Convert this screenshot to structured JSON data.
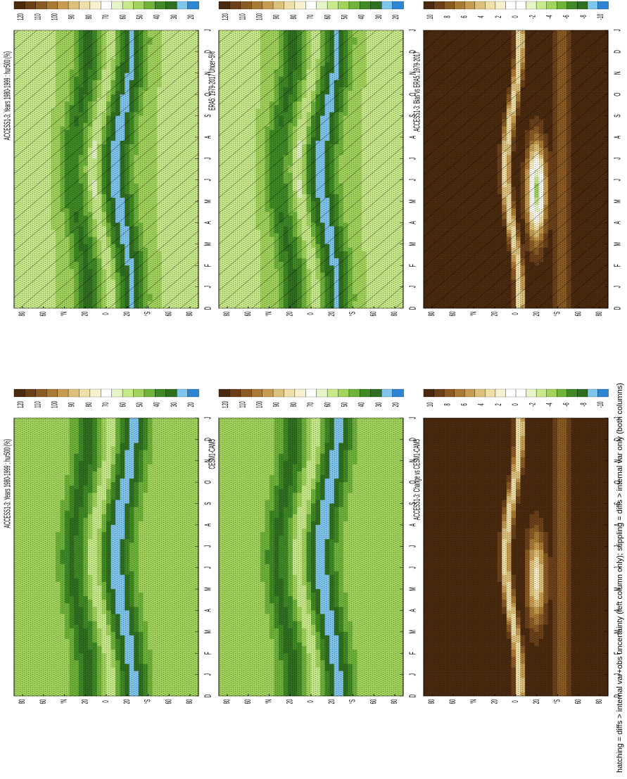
{
  "figure": {
    "footnote": "hatching = diffs > internal var+obs uncertainty (left column only); stippling = diffs > internal var only (both columns)",
    "month_labels": [
      "D",
      "J",
      "F",
      "M",
      "A",
      "M",
      "J",
      "J",
      "A",
      "S",
      "O",
      "N",
      "D",
      "J"
    ],
    "lat_labels": [
      "80",
      "60",
      "°N",
      "20",
      "0",
      "20",
      "°S",
      "60",
      "80"
    ]
  },
  "colors": {
    "climatology": [
      "#4a2a0e",
      "#6b4019",
      "#8a5a23",
      "#a97a33",
      "#c79c50",
      "#dcc17c",
      "#eee0a8",
      "#f7f1cf",
      "#ffffff",
      "#e6f5c8",
      "#c8ea8a",
      "#a2d45c",
      "#6fb33a",
      "#3f8a25",
      "#2f6f1f",
      "#7fc6ef",
      "#2c86d4"
    ],
    "difference": [
      "#4a2a0e",
      "#6b4019",
      "#8a5a23",
      "#a97a33",
      "#c79c50",
      "#dcc17c",
      "#eee0a8",
      "#f7f1cf",
      "#ffffff",
      "#ffffff",
      "#e6f5c8",
      "#c8ea8a",
      "#a2d45c",
      "#6fb33a",
      "#3f8a25",
      "#2f6f1f",
      "#7fc6ef",
      "#2c86d4"
    ]
  },
  "colorbars": {
    "climatology": [
      "120",
      "110",
      "100",
      "90",
      "80",
      "70",
      "60",
      "50",
      "40",
      "30",
      "20"
    ],
    "difference": [
      "10",
      "8",
      "6",
      "4",
      "2",
      "0",
      "-2",
      "-4",
      "-6",
      "-8",
      "-10"
    ]
  },
  "chart_data": [
    {
      "type": "heatmap",
      "title": "ACCESS1-3: Years 1980-1999 : hur500 (%)",
      "x": [
        "D",
        "J",
        "F",
        "M",
        "A",
        "M",
        "J",
        "J",
        "A",
        "S",
        "O",
        "N",
        "D",
        "J"
      ],
      "y": [
        "80",
        "60",
        "°N",
        "20",
        "0",
        "20",
        "°S",
        "60",
        "80"
      ],
      "hatching": true,
      "stippling": true,
      "colorbar": [
        "120",
        "110",
        "100",
        "90",
        "80",
        "70",
        "60",
        "50",
        "40",
        "30",
        "20"
      ]
    },
    {
      "type": "heatmap",
      "title": "ACCESS1-3: Years 1980-1999 : hur500 (%)",
      "x": [
        "D",
        "J",
        "F",
        "M",
        "A",
        "M",
        "J",
        "J",
        "A",
        "S",
        "O",
        "N",
        "D",
        "J"
      ],
      "y": [
        "80",
        "60",
        "°N",
        "20",
        "0",
        "20",
        "°S",
        "60",
        "80"
      ],
      "hatching": false,
      "stippling": true,
      "colorbar": [
        "120",
        "110",
        "100",
        "90",
        "80",
        "70",
        "60",
        "50",
        "40",
        "30",
        "20"
      ]
    },
    {
      "type": "heatmap",
      "title": "ERA5: 1979-2017 Uncer~5%",
      "x": [
        "D",
        "J",
        "F",
        "M",
        "A",
        "M",
        "J",
        "J",
        "A",
        "S",
        "O",
        "N",
        "D",
        "J"
      ],
      "y": [
        "80",
        "60",
        "°N",
        "20",
        "0",
        "20",
        "°S",
        "60",
        "80"
      ],
      "hatching": true,
      "stippling": true,
      "colorbar": [
        "120",
        "110",
        "100",
        "90",
        "80",
        "70",
        "60",
        "50",
        "40",
        "30",
        "20"
      ]
    },
    {
      "type": "heatmap",
      "title": "CESM1-CAM5",
      "x": [
        "D",
        "J",
        "F",
        "M",
        "A",
        "M",
        "J",
        "J",
        "A",
        "S",
        "O",
        "N",
        "D",
        "J"
      ],
      "y": [
        "80",
        "60",
        "°N",
        "20",
        "0",
        "20",
        "°S",
        "60",
        "80"
      ],
      "hatching": false,
      "stippling": true,
      "colorbar": [
        "120",
        "110",
        "100",
        "90",
        "80",
        "70",
        "60",
        "50",
        "40",
        "30",
        "20"
      ]
    },
    {
      "type": "heatmap",
      "title": "ACCESS1-3: Bias vs ERA5: 1979-2017",
      "x": [
        "D",
        "J",
        "F",
        "M",
        "A",
        "M",
        "J",
        "J",
        "A",
        "S",
        "O",
        "N",
        "D",
        "J"
      ],
      "y": [
        "80",
        "60",
        "°N",
        "20",
        "0",
        "20",
        "°S",
        "60",
        "80"
      ],
      "hatching": true,
      "stippling": true,
      "colorbar": [
        "10",
        "8",
        "6",
        "4",
        "2",
        "0",
        "-2",
        "-4",
        "-6",
        "-8",
        "-10"
      ]
    },
    {
      "type": "heatmap",
      "title": "ACCESS1-3: Change vs CESM1-CAM5",
      "x": [
        "D",
        "J",
        "F",
        "M",
        "A",
        "M",
        "J",
        "J",
        "A",
        "S",
        "O",
        "N",
        "D",
        "J"
      ],
      "y": [
        "80",
        "60",
        "°N",
        "20",
        "0",
        "20",
        "°S",
        "60",
        "80"
      ],
      "hatching": false,
      "stippling": true,
      "colorbar": [
        "10",
        "8",
        "6",
        "4",
        "2",
        "0",
        "-2",
        "-4",
        "-6",
        "-8",
        "-10"
      ]
    }
  ]
}
